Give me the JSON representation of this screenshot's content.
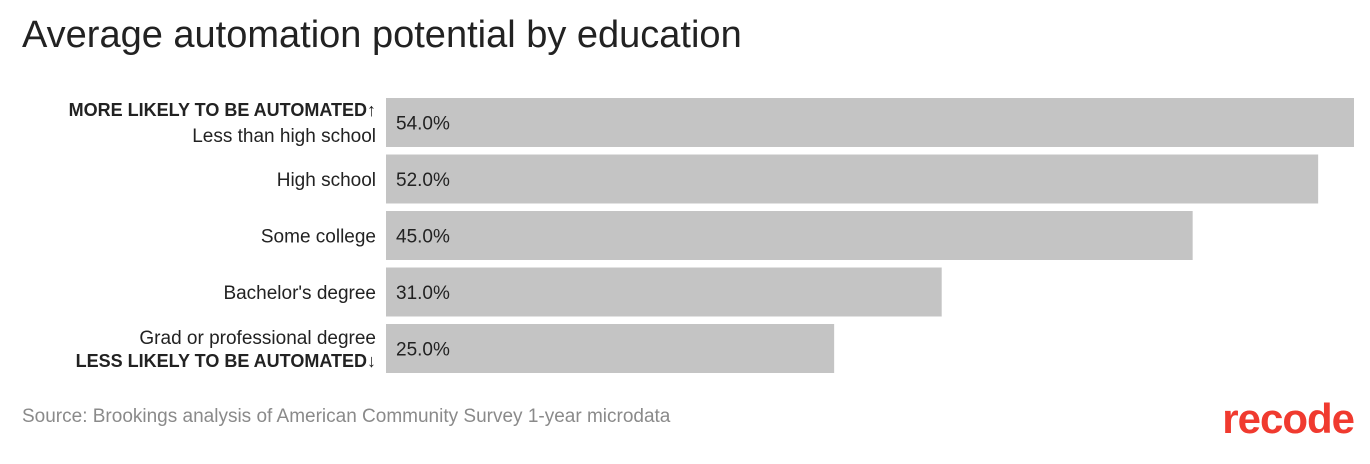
{
  "colors": {
    "bar": "#c4c4c4",
    "text": "#222222",
    "source": "#8a8a8a",
    "brand": "#f03a2f"
  },
  "chart_data": {
    "type": "bar",
    "orientation": "horizontal",
    "title": "Average automation potential by education",
    "categories": [
      "Less than high school",
      "High school",
      "Some college",
      "Bachelor's degree",
      "Grad or professional degree"
    ],
    "values": [
      54.0,
      52.0,
      45.0,
      31.0,
      25.0
    ],
    "value_labels": [
      "54.0%",
      "52.0%",
      "45.0%",
      "31.0%",
      "25.0%"
    ],
    "xlim": [
      0,
      54
    ],
    "grid": false,
    "annotations": {
      "top": "MORE LIKELY TO BE AUTOMATED↑",
      "bottom": "LESS LIKELY TO BE AUTOMATED↓"
    }
  },
  "source": "Source: Brookings analysis of American Community Survey 1-year microdata",
  "logo": "recode"
}
